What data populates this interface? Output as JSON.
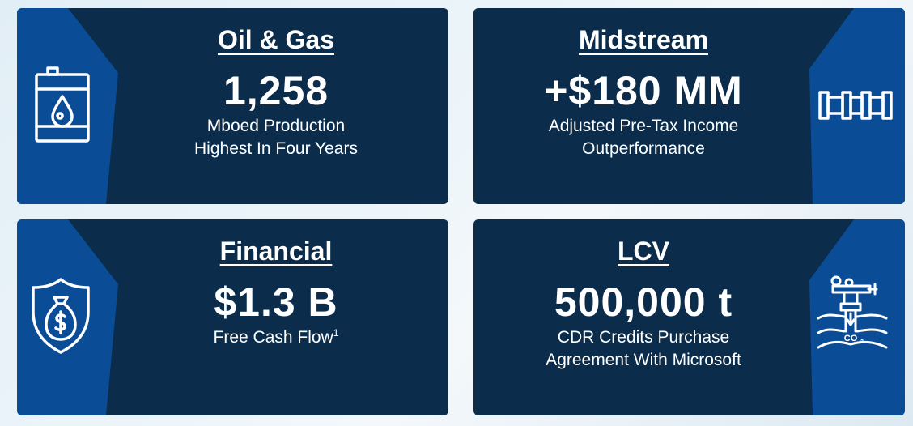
{
  "cards": [
    {
      "title": "Oil & Gas",
      "metric": "1,258",
      "caption_lines": [
        "Mboed Production",
        "Highest In Four Years"
      ],
      "icon": "oil-barrel-icon"
    },
    {
      "title": "Midstream",
      "metric": "+$180 MM",
      "caption_lines": [
        "Adjusted Pre-Tax Income",
        "Outperformance"
      ],
      "icon": "pipeline-icon"
    },
    {
      "title": "Financial",
      "metric": "$1.3 B",
      "caption_lines": [
        "Free Cash Flow"
      ],
      "footnote": "1",
      "icon": "money-bag-shield-icon"
    },
    {
      "title": "LCV",
      "metric": "500,000 t",
      "caption_lines": [
        "CDR Credits Purchase",
        "Agreement With Microsoft"
      ],
      "icon": "co2-injection-well-icon"
    }
  ],
  "colors": {
    "card_background": "#0b2d4b",
    "accent_blue": "#0a4d96",
    "text": "#ffffff",
    "page_background": "#e8f2f8"
  }
}
